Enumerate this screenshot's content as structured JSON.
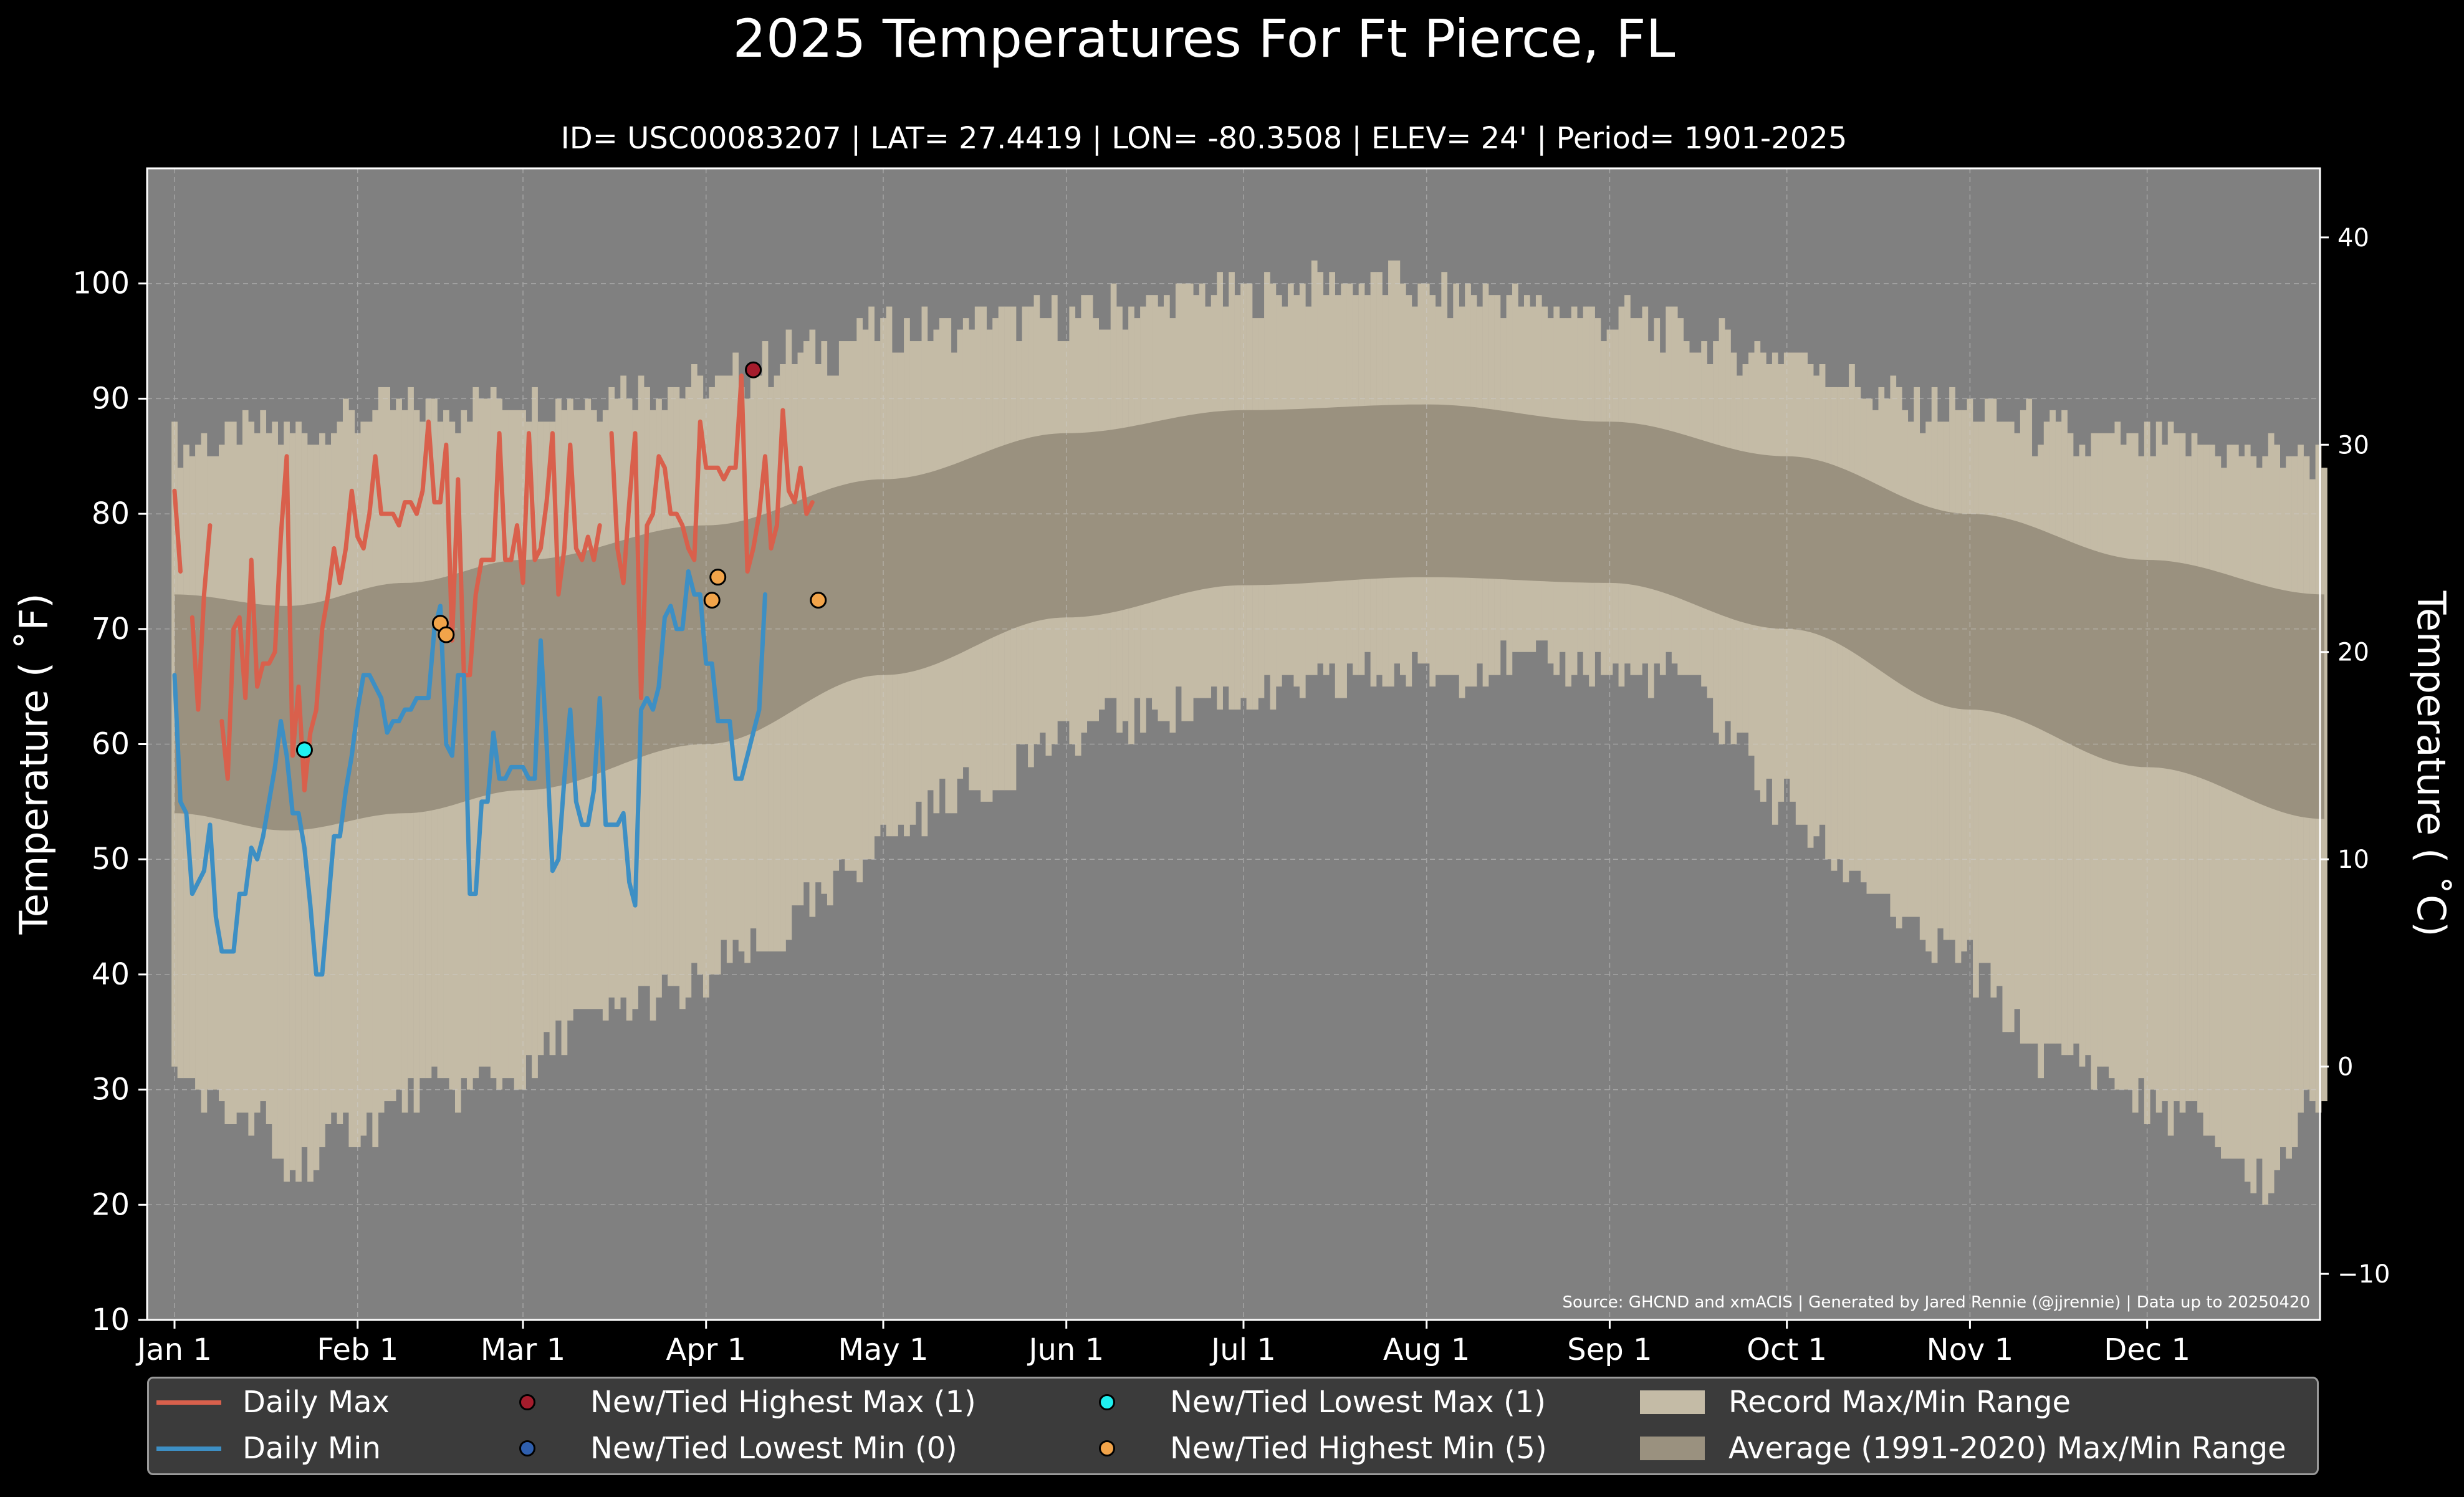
{
  "title": "2025 Temperatures For Ft Pierce, FL",
  "subtitle": "ID= USC00083207 | LAT= 27.4419 | LON= -80.3508 | ELEV= 24' | Period= 1901-2025",
  "ylabel_left": "Temperature ($^\\circ$F)",
  "ylabel_left_display": "Temperature ( ˚F)",
  "ylabel_right_display": "Temperature ( ˚C)",
  "source": "Source: GHCND and xmACIS | Generated by Jared Rennie (@jjrennie) | Data up to 20250420",
  "colors": {
    "background": "#000000",
    "plot_bg": "#808080",
    "record_range": "#c4bba6",
    "average_range": "#9a917f",
    "daily_max": "#d9604c",
    "daily_min": "#3d8fc4",
    "highest_max_marker": "#a51c2c",
    "lowest_min_marker": "#2f5fae",
    "lowest_max_marker": "#1ff0f0",
    "highest_min_marker": "#f2a44a"
  },
  "legend": {
    "daily_max": "Daily Max",
    "daily_min": "Daily Min",
    "highest_max": "New/Tied Highest Max (1)",
    "lowest_min": "New/Tied Lowest Min (0)",
    "lowest_max": "New/Tied Lowest Max (1)",
    "highest_min": "New/Tied Highest Min (5)",
    "record_range": "Record Max/Min Range",
    "average_range": "Average (1991-2020) Max/Min Range"
  },
  "chart_data": {
    "type": "line",
    "title": "2025 Temperatures For Ft Pierce, FL",
    "ylabel": "Temperature ( ˚F)",
    "ylabel_right": "Temperature ( ˚C)",
    "ylim": [
      10,
      110
    ],
    "y_ticks": [
      10,
      20,
      30,
      40,
      50,
      60,
      70,
      80,
      90,
      100
    ],
    "y2_ticks": [
      -10,
      0,
      10,
      20,
      30,
      40
    ],
    "xlim": [
      0,
      364
    ],
    "x_ticks": [
      {
        "day": 1,
        "label": "Jan 1"
      },
      {
        "day": 32,
        "label": "Feb 1"
      },
      {
        "day": 60,
        "label": "Mar 1"
      },
      {
        "day": 91,
        "label": "Apr 1"
      },
      {
        "day": 121,
        "label": "May 1"
      },
      {
        "day": 152,
        "label": "Jun 1"
      },
      {
        "day": 182,
        "label": "Jul 1"
      },
      {
        "day": 213,
        "label": "Aug 1"
      },
      {
        "day": 244,
        "label": "Sep 1"
      },
      {
        "day": 274,
        "label": "Oct 1"
      },
      {
        "day": 305,
        "label": "Nov 1"
      },
      {
        "day": 335,
        "label": "Dec 1"
      }
    ],
    "grid": true,
    "legend_position": "bottom",
    "record_max_anchors": [
      [
        1,
        86
      ],
      [
        20,
        87
      ],
      [
        40,
        89
      ],
      [
        60,
        90
      ],
      [
        90,
        91
      ],
      [
        110,
        94
      ],
      [
        121,
        96
      ],
      [
        150,
        97
      ],
      [
        180,
        99
      ],
      [
        200,
        100
      ],
      [
        220,
        99
      ],
      [
        244,
        97
      ],
      [
        270,
        94
      ],
      [
        300,
        89
      ],
      [
        330,
        86
      ],
      [
        365,
        85
      ]
    ],
    "record_min_anchors": [
      [
        1,
        31
      ],
      [
        15,
        27
      ],
      [
        20,
        23
      ],
      [
        32,
        27
      ],
      [
        45,
        30
      ],
      [
        60,
        31
      ],
      [
        70,
        36
      ],
      [
        85,
        38
      ],
      [
        100,
        42
      ],
      [
        110,
        46
      ],
      [
        121,
        52
      ],
      [
        135,
        56
      ],
      [
        150,
        60
      ],
      [
        160,
        62
      ],
      [
        180,
        64
      ],
      [
        210,
        66
      ],
      [
        230,
        67
      ],
      [
        255,
        66
      ],
      [
        265,
        61
      ],
      [
        272,
        55
      ],
      [
        285,
        49
      ],
      [
        300,
        42
      ],
      [
        320,
        33
      ],
      [
        340,
        28
      ],
      [
        355,
        22
      ],
      [
        365,
        30
      ]
    ],
    "avg_max_anchors": [
      [
        1,
        73
      ],
      [
        20,
        72
      ],
      [
        40,
        74
      ],
      [
        60,
        76
      ],
      [
        91,
        79
      ],
      [
        121,
        83
      ],
      [
        152,
        87
      ],
      [
        182,
        89
      ],
      [
        213,
        89.5
      ],
      [
        244,
        88
      ],
      [
        274,
        85
      ],
      [
        305,
        80
      ],
      [
        335,
        76
      ],
      [
        365,
        73
      ]
    ],
    "avg_min_anchors": [
      [
        1,
        54
      ],
      [
        20,
        52.5
      ],
      [
        40,
        54
      ],
      [
        60,
        56
      ],
      [
        91,
        60
      ],
      [
        121,
        66
      ],
      [
        152,
        71
      ],
      [
        182,
        73.8
      ],
      [
        213,
        74.5
      ],
      [
        244,
        74
      ],
      [
        274,
        70
      ],
      [
        305,
        63
      ],
      [
        335,
        58
      ],
      [
        365,
        53.5
      ]
    ],
    "series": [
      {
        "name": "Daily Max",
        "start_day": 1,
        "values": [
          82,
          75,
          null,
          71,
          63,
          73,
          79,
          null,
          62,
          57,
          70,
          71,
          64,
          76,
          65,
          67,
          67,
          68,
          78,
          85,
          59,
          65,
          56,
          61,
          63,
          70,
          73,
          77,
          74,
          77,
          82,
          78,
          77,
          80,
          85,
          80,
          80,
          80,
          79,
          81,
          81,
          80,
          82,
          88,
          81,
          81,
          86,
          69,
          83,
          66,
          66,
          73,
          76,
          76,
          76,
          87,
          76,
          76,
          79,
          74,
          87,
          76,
          77,
          81,
          87,
          73,
          77,
          86,
          77,
          76,
          78,
          76,
          79,
          null,
          87,
          77,
          74,
          81,
          87,
          64,
          79,
          80,
          85,
          84,
          80,
          80,
          79,
          77,
          76,
          88,
          84,
          84,
          84,
          83,
          84,
          84,
          92,
          75,
          77,
          80,
          85,
          77,
          79,
          89,
          82,
          81,
          84,
          80,
          81
        ]
      },
      {
        "name": "Daily Min",
        "start_day": 1,
        "values": [
          66,
          55,
          54,
          47,
          48,
          49,
          53,
          45,
          42,
          42,
          42,
          47,
          47,
          51,
          50,
          52,
          55,
          58,
          62,
          59,
          54,
          54,
          51,
          46,
          40,
          40,
          46,
          52,
          52,
          56,
          59,
          63,
          66,
          66,
          65,
          64,
          61,
          62,
          62,
          63,
          63,
          64,
          64,
          64,
          70,
          72,
          60,
          59,
          66,
          66,
          47,
          47,
          55,
          55,
          61,
          57,
          57,
          58,
          58,
          58,
          57,
          57,
          69,
          60,
          49,
          50,
          57,
          63,
          55,
          53,
          53,
          56,
          64,
          53,
          53,
          53,
          54,
          48,
          46,
          63,
          64,
          63,
          65,
          71,
          72,
          70,
          70,
          75,
          73,
          73,
          67,
          67,
          62,
          62,
          62,
          57,
          57,
          59,
          61,
          63,
          73
        ]
      }
    ],
    "records": {
      "highest_max": [
        {
          "day": 99,
          "value": 92.5
        }
      ],
      "lowest_max": [
        {
          "day": 23,
          "value": 59.5
        }
      ],
      "highest_min": [
        {
          "day": 46,
          "value": 70.5
        },
        {
          "day": 47,
          "value": 69.5
        },
        {
          "day": 92,
          "value": 72.5
        },
        {
          "day": 93,
          "value": 74.5
        },
        {
          "day": 110,
          "value": 72.5
        }
      ],
      "lowest_min": []
    }
  }
}
